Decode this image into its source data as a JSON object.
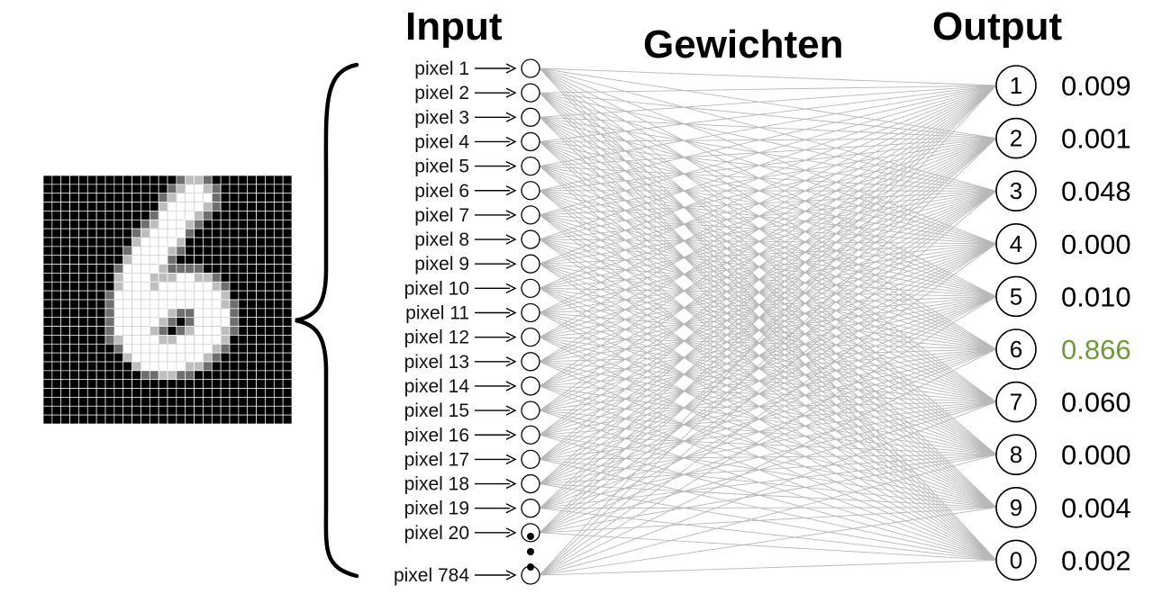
{
  "titles": {
    "input": "Input",
    "weights": "Gewichten",
    "output": "Output"
  },
  "input_nodes": [
    {
      "label": "pixel 1"
    },
    {
      "label": "pixel 2"
    },
    {
      "label": "pixel 3"
    },
    {
      "label": "pixel 4"
    },
    {
      "label": "pixel 5"
    },
    {
      "label": "pixel 6"
    },
    {
      "label": "pixel 7"
    },
    {
      "label": "pixel 8"
    },
    {
      "label": "pixel 9"
    },
    {
      "label": "pixel 10"
    },
    {
      "label": "pixel 11"
    },
    {
      "label": "pixel 12"
    },
    {
      "label": "pixel 13"
    },
    {
      "label": "pixel 14"
    },
    {
      "label": "pixel 15"
    },
    {
      "label": "pixel 16"
    },
    {
      "label": "pixel 17"
    },
    {
      "label": "pixel 18"
    },
    {
      "label": "pixel 19"
    },
    {
      "label": "pixel 20"
    },
    {
      "label": "pixel 784"
    }
  ],
  "output_nodes": [
    {
      "digit": "1",
      "probability": "0.009",
      "highlight": false
    },
    {
      "digit": "2",
      "probability": "0.001",
      "highlight": false
    },
    {
      "digit": "3",
      "probability": "0.048",
      "highlight": false
    },
    {
      "digit": "4",
      "probability": "0.000",
      "highlight": false
    },
    {
      "digit": "5",
      "probability": "0.010",
      "highlight": false
    },
    {
      "digit": "6",
      "probability": "0.866",
      "highlight": true
    },
    {
      "digit": "7",
      "probability": "0.060",
      "highlight": false
    },
    {
      "digit": "8",
      "probability": "0.000",
      "highlight": false
    },
    {
      "digit": "9",
      "probability": "0.004",
      "highlight": false
    },
    {
      "digit": "0",
      "probability": "0.002",
      "highlight": false
    }
  ],
  "colors": {
    "highlight": "#6f9a3a",
    "normal_text": "#000000",
    "connection_line": "#b8b8b8",
    "image_background": "#000000",
    "image_grid": "#ffffff"
  },
  "digit_image": {
    "description_icon": "handwritten-digit-6-pixel-grid-icon"
  }
}
